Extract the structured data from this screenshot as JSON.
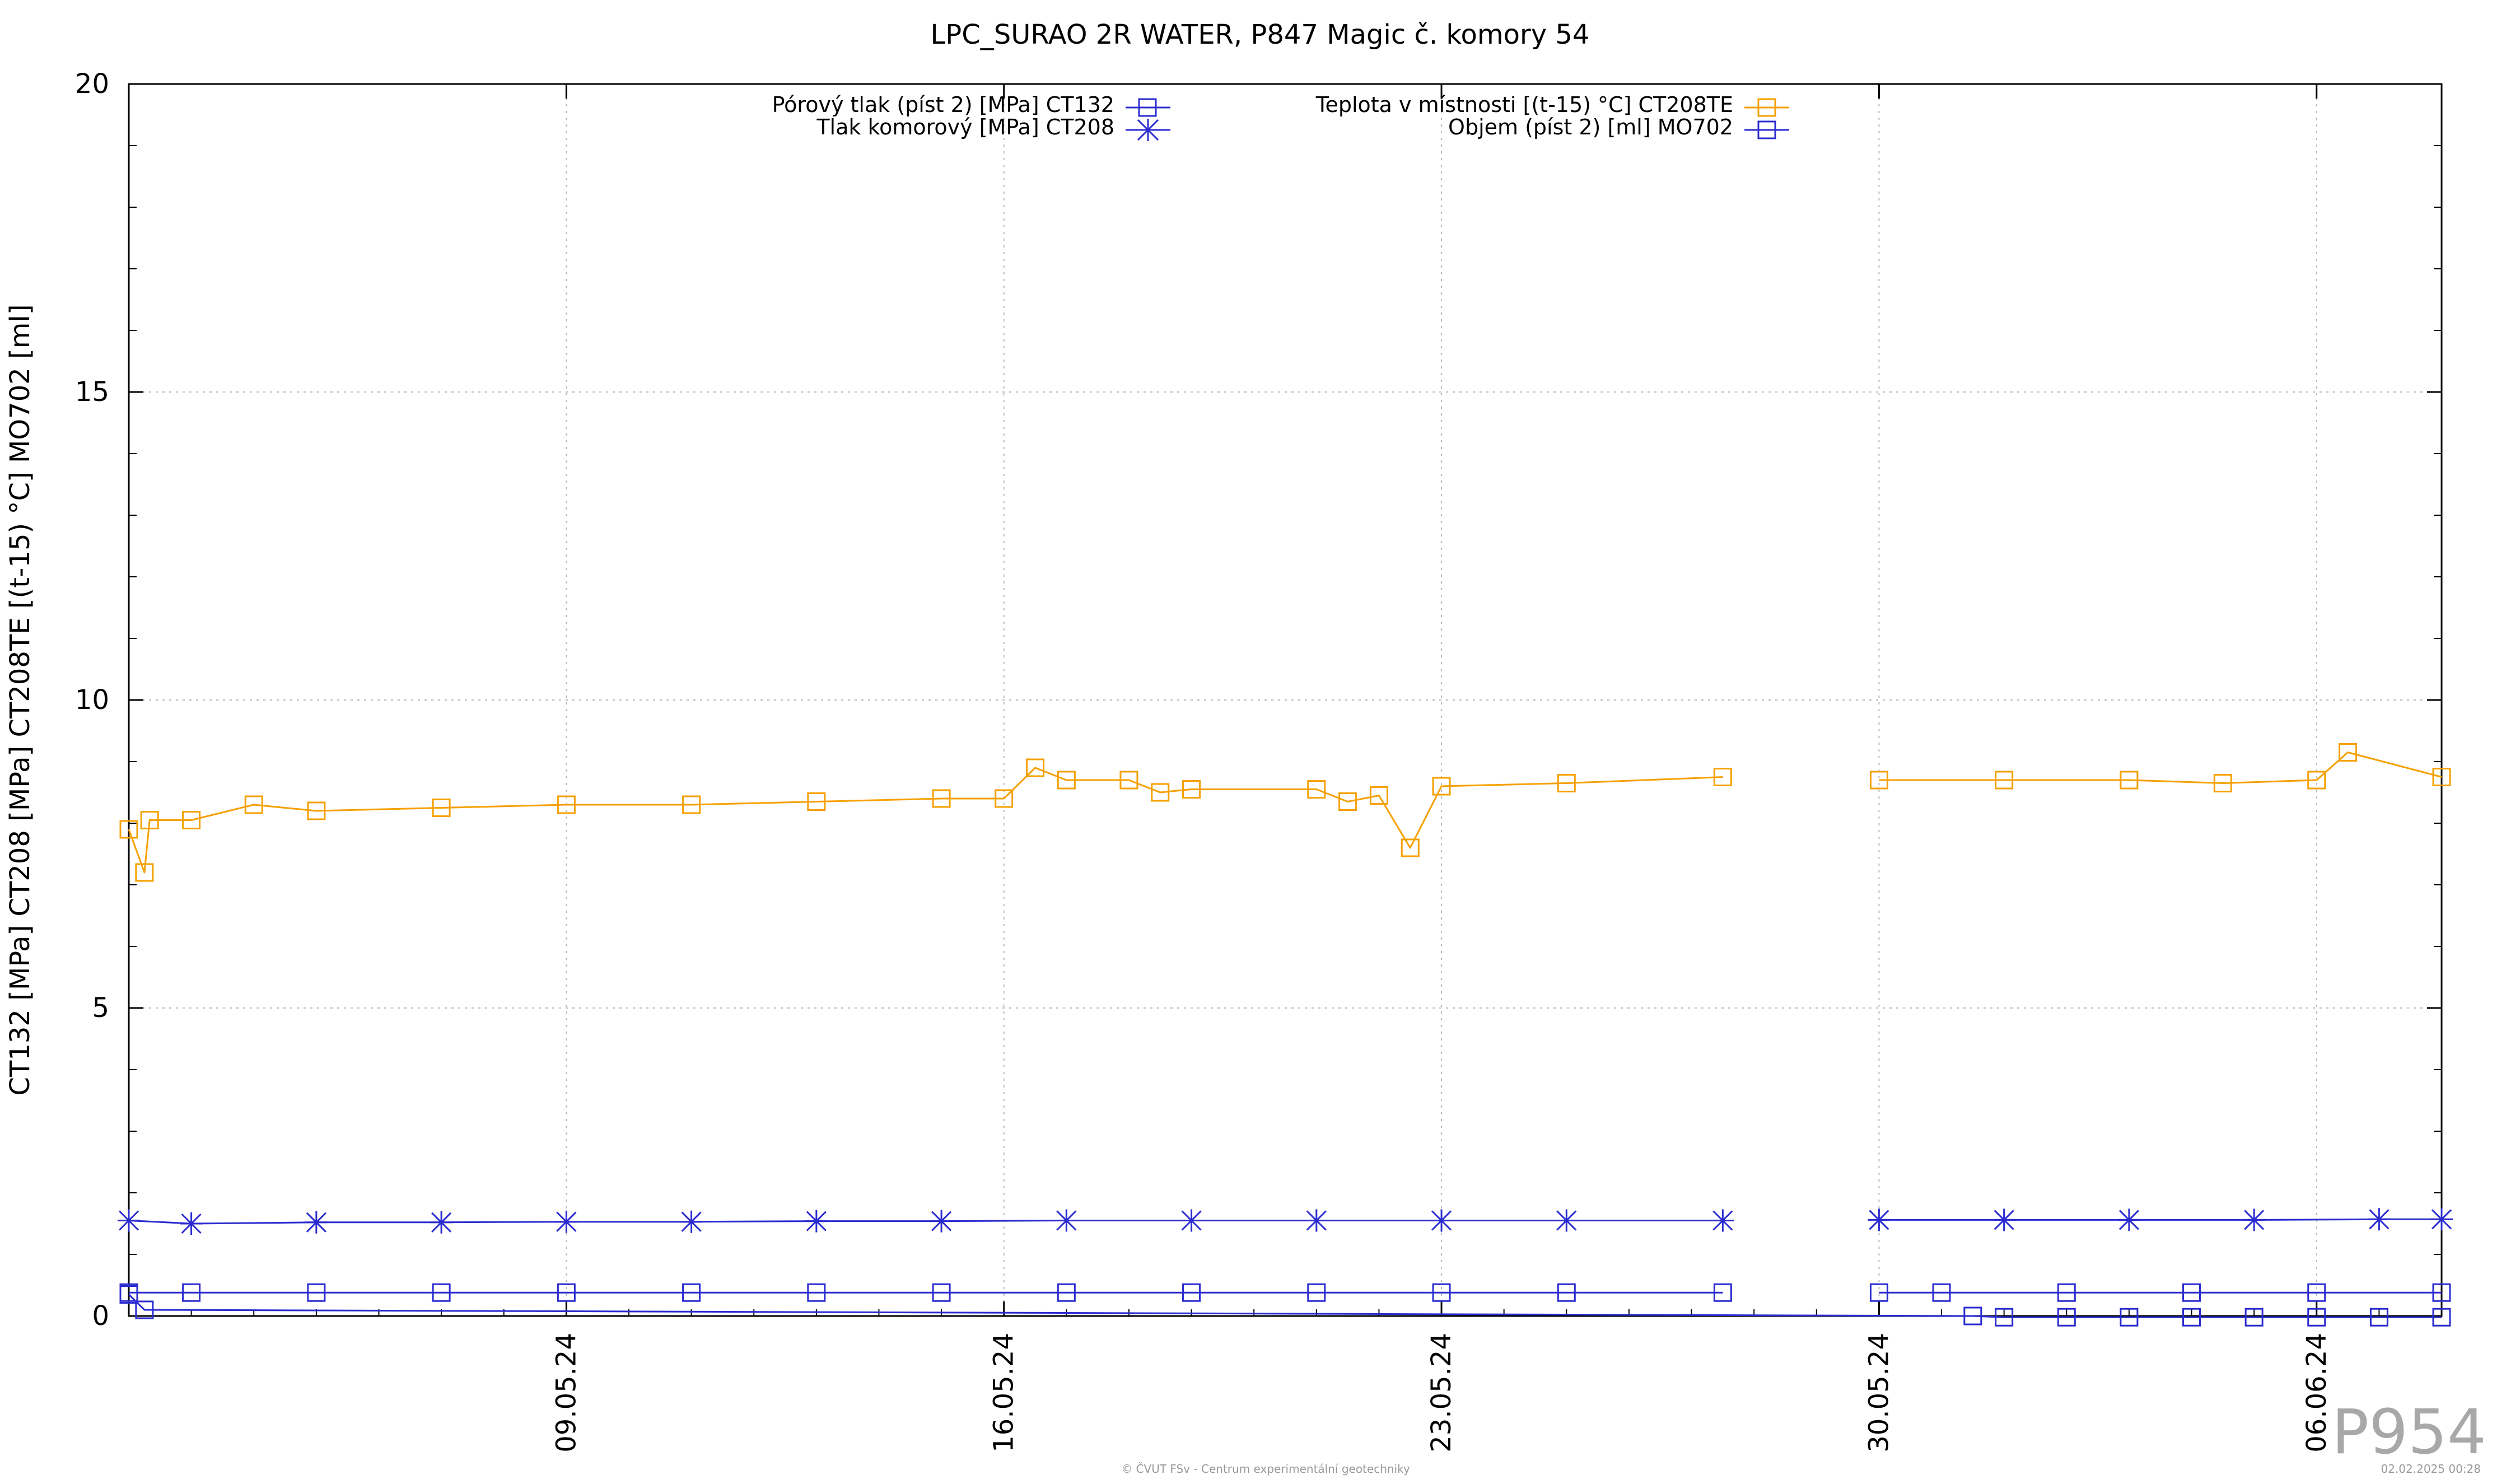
{
  "colors": {
    "pore_pressure": "#2b2bd0",
    "cell_pressure": "#2b2bd0",
    "temperature": "#f5a000",
    "volume": "#2b2bd0",
    "grid": "#b8b8b8",
    "watermark": "#a8a8a8"
  },
  "footer": {
    "credit": "© ČVUT FSv - Centrum experimentální geotechniky",
    "date": "02.02.2025 00:28"
  },
  "watermark": "P954",
  "chart_data": {
    "type": "line",
    "title": "LPC_SURAO 2R WATER, P847 Magic č. komory 54",
    "ylabel": "CT132 [MPa] CT208 [MPa] CT208TE [(t-15) °C] MO702 [ml]",
    "xlabel": "",
    "ylim": [
      0,
      20
    ],
    "yticks": [
      "0",
      "5",
      "10",
      "15",
      "20"
    ],
    "ytick_values": [
      0,
      5,
      10,
      15,
      20
    ],
    "xlim": [
      "2024-05-02",
      "2024-06-08"
    ],
    "xticks": [
      "09.05.24",
      "16.05.24",
      "23.05.24",
      "30.05.24",
      "06.06.24"
    ],
    "xtick_dates": [
      "2024-05-09",
      "2024-05-16",
      "2024-05-23",
      "2024-05-30",
      "2024-06-06"
    ],
    "grid": true,
    "legend_position": "top-center",
    "series": [
      {
        "name": "Pórový tlak (píst 2) [MPa] CT132",
        "marker": "square",
        "x": [
          "2024-05-02",
          "2024-05-03",
          "2024-05-05",
          "2024-05-07",
          "2024-05-09",
          "2024-05-11",
          "2024-05-13",
          "2024-05-15",
          "2024-05-17",
          "2024-05-19",
          "2024-05-21",
          "2024-05-23",
          "2024-05-25",
          "2024-05-27 12:00",
          "2024-05-28",
          "2024-05-30",
          "2024-05-31",
          "2024-06-02",
          "2024-06-04",
          "2024-06-06",
          "2024-06-08"
        ],
        "values": [
          0.38,
          0.38,
          0.38,
          0.38,
          0.38,
          0.38,
          0.38,
          0.38,
          0.38,
          0.38,
          0.38,
          0.38,
          0.38,
          0.38,
          null,
          0.38,
          0.38,
          0.38,
          0.38,
          0.38,
          0.38
        ]
      },
      {
        "name": "Tlak komorový [MPa] CT208",
        "marker": "star",
        "x": [
          "2024-05-02",
          "2024-05-03",
          "2024-05-05",
          "2024-05-07",
          "2024-05-09",
          "2024-05-11",
          "2024-05-13",
          "2024-05-15",
          "2024-05-17",
          "2024-05-19",
          "2024-05-21",
          "2024-05-23",
          "2024-05-25",
          "2024-05-27 12:00",
          "2024-05-28",
          "2024-05-30",
          "2024-06-01",
          "2024-06-03",
          "2024-06-05",
          "2024-06-07",
          "2024-06-08"
        ],
        "values": [
          1.55,
          1.5,
          1.52,
          1.52,
          1.53,
          1.53,
          1.54,
          1.54,
          1.55,
          1.55,
          1.55,
          1.55,
          1.55,
          1.55,
          null,
          1.56,
          1.56,
          1.56,
          1.56,
          1.57,
          1.57
        ]
      },
      {
        "name": "Teplota v místnosti [(t-15) °C] CT208TE",
        "marker": "square",
        "x": [
          "2024-05-02",
          "2024-05-02 06:00",
          "2024-05-02 08:00",
          "2024-05-03",
          "2024-05-04",
          "2024-05-05",
          "2024-05-07",
          "2024-05-09",
          "2024-05-11",
          "2024-05-13",
          "2024-05-15",
          "2024-05-16",
          "2024-05-16 12:00",
          "2024-05-17",
          "2024-05-18",
          "2024-05-18 12:00",
          "2024-05-19",
          "2024-05-21",
          "2024-05-21 12:00",
          "2024-05-22",
          "2024-05-22 12:00",
          "2024-05-23",
          "2024-05-25",
          "2024-05-27 12:00",
          "2024-05-28",
          "2024-05-30",
          "2024-06-01",
          "2024-06-03",
          "2024-06-04 12:00",
          "2024-06-06",
          "2024-06-06 12:00",
          "2024-06-08"
        ],
        "values": [
          7.9,
          7.2,
          8.05,
          8.05,
          8.3,
          8.2,
          8.25,
          8.3,
          8.3,
          8.35,
          8.4,
          8.4,
          8.9,
          8.7,
          8.7,
          8.5,
          8.55,
          8.55,
          8.35,
          8.45,
          7.6,
          8.6,
          8.65,
          8.75,
          null,
          8.7,
          8.7,
          8.7,
          8.65,
          8.7,
          9.15,
          8.75
        ]
      },
      {
        "name": "Objem (píst 2) [ml] MO702",
        "marker": "square",
        "x": [
          "2024-05-02",
          "2024-05-02 06:00",
          "2024-05-31 12:00",
          "2024-06-01",
          "2024-06-02",
          "2024-06-03",
          "2024-06-04",
          "2024-06-05",
          "2024-06-06",
          "2024-06-07",
          "2024-06-08"
        ],
        "values": [
          0.35,
          0.1,
          0.0,
          -0.02,
          -0.02,
          -0.02,
          -0.02,
          -0.02,
          -0.02,
          -0.02,
          -0.02
        ]
      }
    ]
  }
}
